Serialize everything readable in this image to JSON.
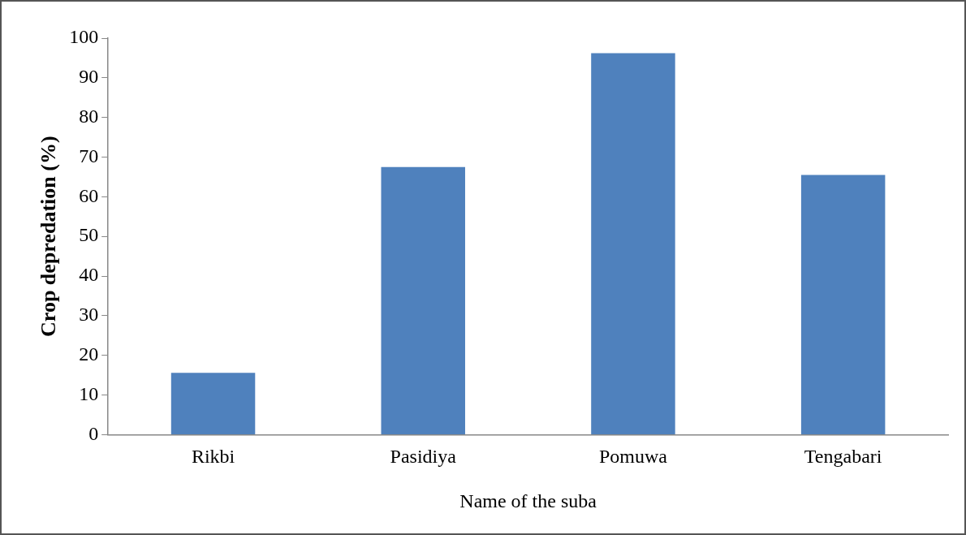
{
  "chart_data": {
    "type": "bar",
    "xlabel": "Name of the suba",
    "ylabel": "Crop depredation (%)",
    "categories": [
      "Rikbi",
      "Pasidiya",
      "Pomuwa",
      "Tengabari"
    ],
    "values": [
      15.6,
      67.5,
      96.2,
      65.5
    ],
    "color": "#4f81bd",
    "ylim": [
      0,
      100
    ],
    "yticks": [
      0,
      10,
      20,
      30,
      40,
      50,
      60,
      70,
      80,
      90,
      100
    ],
    "grid": false,
    "legend": false
  }
}
